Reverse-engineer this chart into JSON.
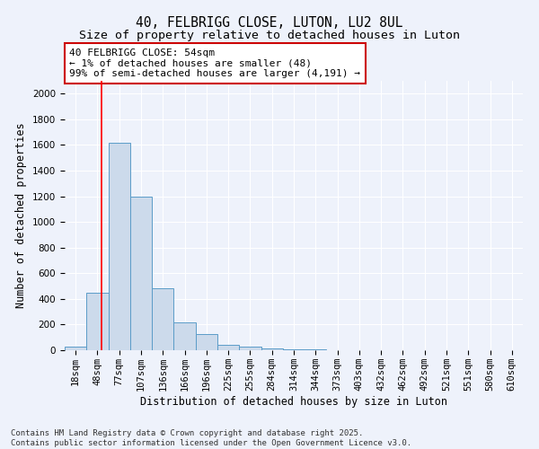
{
  "title": "40, FELBRIGG CLOSE, LUTON, LU2 8UL",
  "subtitle": "Size of property relative to detached houses in Luton",
  "xlabel": "Distribution of detached houses by size in Luton",
  "ylabel": "Number of detached properties",
  "categories": [
    "18sqm",
    "48sqm",
    "77sqm",
    "107sqm",
    "136sqm",
    "166sqm",
    "196sqm",
    "225sqm",
    "255sqm",
    "284sqm",
    "314sqm",
    "344sqm",
    "373sqm",
    "403sqm",
    "432sqm",
    "462sqm",
    "492sqm",
    "521sqm",
    "551sqm",
    "580sqm",
    "610sqm"
  ],
  "values": [
    30,
    450,
    1620,
    1200,
    480,
    215,
    125,
    45,
    30,
    15,
    10,
    10,
    0,
    0,
    0,
    0,
    0,
    0,
    0,
    0,
    0
  ],
  "bar_color": "#ccdaeb",
  "bar_edge_color": "#5b9cc8",
  "red_line_x": 1.2,
  "annotation_text": "40 FELBRIGG CLOSE: 54sqm\n← 1% of detached houses are smaller (48)\n99% of semi-detached houses are larger (4,191) →",
  "annotation_box_color": "#ffffff",
  "annotation_box_edge": "#cc0000",
  "ylim": [
    0,
    2100
  ],
  "yticks": [
    0,
    200,
    400,
    600,
    800,
    1000,
    1200,
    1400,
    1600,
    1800,
    2000
  ],
  "background_color": "#eef2fb",
  "footer_text": "Contains HM Land Registry data © Crown copyright and database right 2025.\nContains public sector information licensed under the Open Government Licence v3.0.",
  "title_fontsize": 10.5,
  "subtitle_fontsize": 9.5,
  "axis_label_fontsize": 8.5,
  "tick_fontsize": 7.5,
  "footer_fontsize": 6.5
}
